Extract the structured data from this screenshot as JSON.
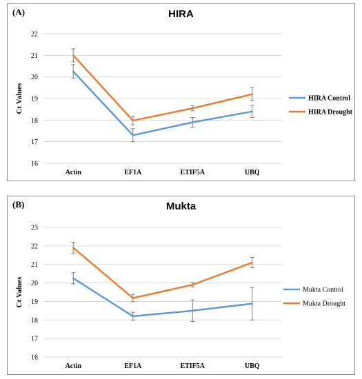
{
  "chart_data": [
    {
      "type": "line",
      "panel_label": "(A)",
      "title": "HIRA",
      "ylabel": "Ct Values",
      "xlabel": "",
      "categories": [
        "Actin",
        "EF1A",
        "ETIF5A",
        "UBQ"
      ],
      "ylim": [
        16,
        22
      ],
      "yticks": [
        16,
        17,
        18,
        19,
        20,
        21,
        22
      ],
      "grid": true,
      "legend_position": "right",
      "legend_bold": true,
      "series": [
        {
          "name": "HIRA Control",
          "color": "#5b9bd5",
          "values": [
            20.25,
            17.3,
            17.9,
            18.4
          ],
          "errors": [
            0.32,
            0.3,
            0.22,
            0.28
          ]
        },
        {
          "name": "HIRA Drought",
          "color": "#ed7d31",
          "values": [
            21.0,
            17.98,
            18.55,
            19.2
          ],
          "errors": [
            0.3,
            0.2,
            0.12,
            0.3
          ]
        }
      ]
    },
    {
      "type": "line",
      "panel_label": "(B)",
      "title": "Mukta",
      "ylabel": "Ct Values",
      "xlabel": "",
      "categories": [
        "Actin",
        "EF1A",
        "ETIF5A",
        "UBQ"
      ],
      "ylim": [
        16,
        23
      ],
      "yticks": [
        16,
        17,
        18,
        19,
        20,
        21,
        22,
        23
      ],
      "grid": true,
      "legend_position": "right",
      "legend_bold": false,
      "series": [
        {
          "name": "Mukta Control",
          "color": "#5b9bd5",
          "values": [
            20.25,
            18.2,
            18.5,
            18.88
          ],
          "errors": [
            0.3,
            0.22,
            0.58,
            0.88
          ]
        },
        {
          "name": "Mukta Drought",
          "color": "#ed7d31",
          "values": [
            21.9,
            19.18,
            19.9,
            21.1
          ],
          "errors": [
            0.3,
            0.2,
            0.12,
            0.28
          ]
        }
      ]
    }
  ]
}
